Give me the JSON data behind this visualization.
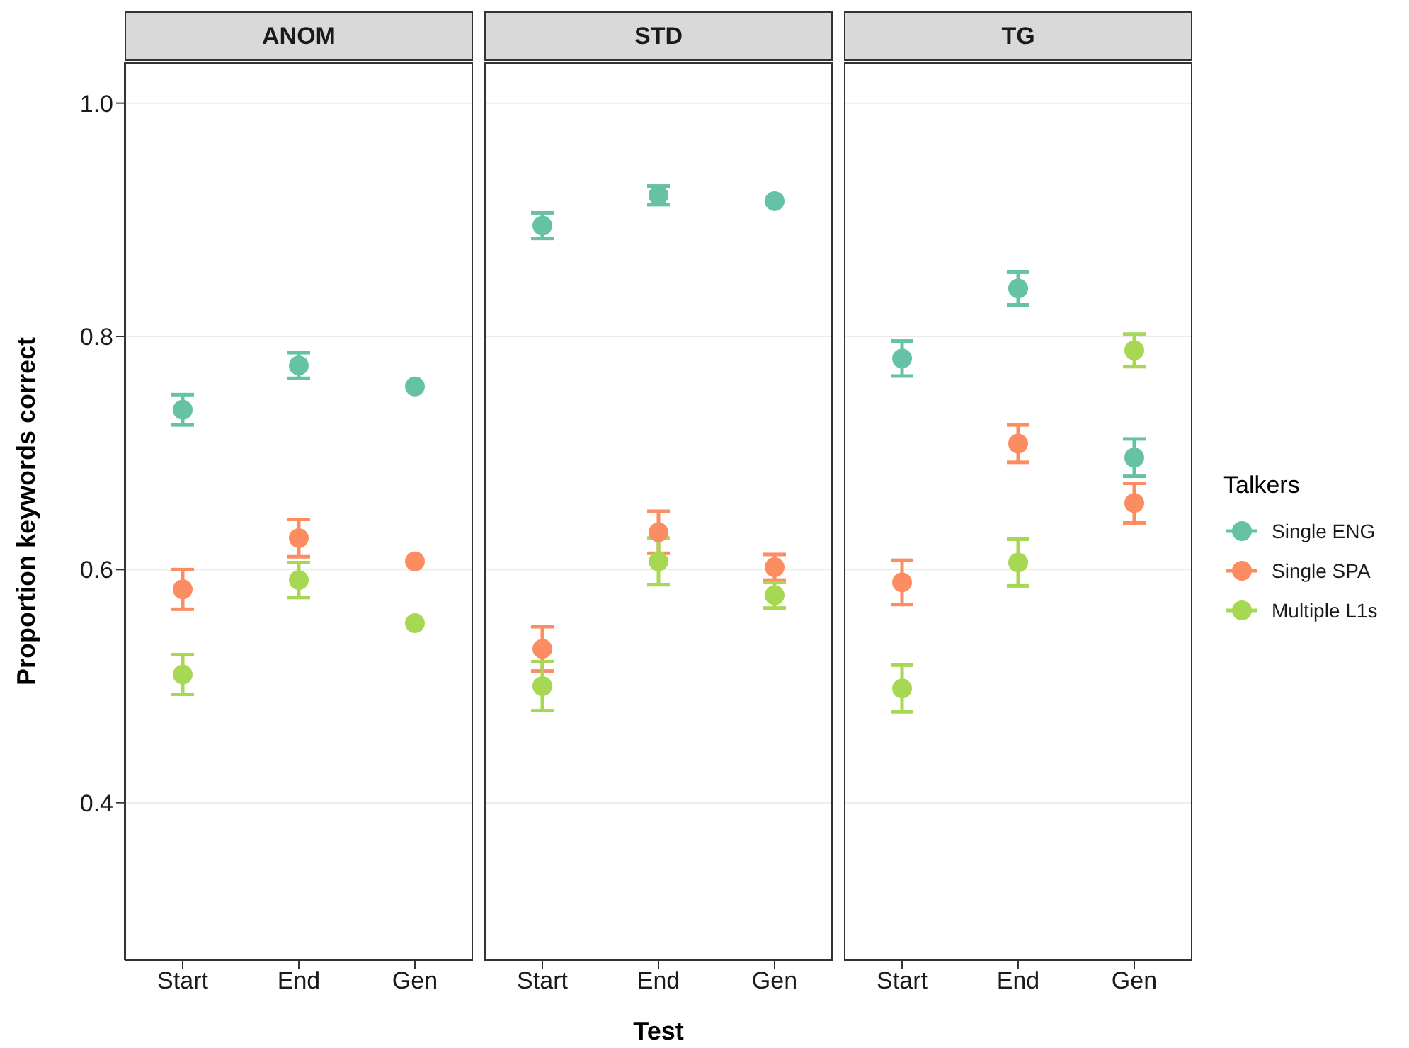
{
  "chart_data": [
    {
      "type": "scatter",
      "title": "ANOM",
      "ylabel": "Proportion keywords correct",
      "categories": [
        "Start",
        "End",
        "Gen"
      ],
      "ylim": [
        0.265,
        1.035
      ],
      "yticks": [
        0.4,
        0.6,
        0.8,
        {
          "value": 1,
          "label": "1.0"
        }
      ],
      "grid": "y",
      "marker": "circle",
      "tick_labels": "xy",
      "series": [
        {
          "color": "#66c2a5",
          "values": [
            0.737,
            0.775,
            0.757
          ],
          "errors": [
            0.013,
            0.011,
            null
          ]
        },
        {
          "color": "#fc8d62",
          "values": [
            0.583,
            0.627,
            0.607
          ],
          "errors": [
            0.017,
            0.016,
            null
          ]
        },
        {
          "color": "#a6d854",
          "values": [
            0.51,
            0.591,
            0.554
          ],
          "errors": [
            0.017,
            0.015,
            null
          ]
        }
      ]
    },
    {
      "type": "scatter",
      "title": "STD",
      "xlabel": "Test",
      "categories": [
        "Start",
        "End",
        "Gen"
      ],
      "ylim": [
        0.265,
        1.035
      ],
      "yticks": [
        0.4,
        0.6,
        0.8,
        1
      ],
      "grid": "y",
      "marker": "circle",
      "tick_labels": "x",
      "series": [
        {
          "color": "#66c2a5",
          "values": [
            0.895,
            0.921,
            0.916
          ],
          "errors": [
            0.011,
            0.008,
            null
          ]
        },
        {
          "color": "#fc8d62",
          "values": [
            0.532,
            0.632,
            0.602
          ],
          "errors": [
            0.019,
            0.018,
            0.011
          ]
        },
        {
          "color": "#a6d854",
          "values": [
            0.5,
            0.607,
            0.578
          ],
          "errors": [
            0.021,
            0.02,
            0.011
          ]
        }
      ]
    },
    {
      "type": "scatter",
      "title": "TG",
      "categories": [
        "Start",
        "End",
        "Gen"
      ],
      "ylim": [
        0.265,
        1.035
      ],
      "yticks": [
        0.4,
        0.6,
        0.8,
        1
      ],
      "grid": "y",
      "marker": "circle",
      "tick_labels": "x",
      "legend": "right",
      "legend_title": "Talkers",
      "series": [
        {
          "name": "Single ENG",
          "color": "#66c2a5",
          "values": [
            0.781,
            0.841,
            0.696
          ],
          "errors": [
            0.015,
            0.014,
            0.016
          ]
        },
        {
          "name": "Single SPA",
          "color": "#fc8d62",
          "values": [
            0.589,
            0.708,
            0.657
          ],
          "errors": [
            0.019,
            0.016,
            0.017
          ]
        },
        {
          "name": "Multiple L1s",
          "color": "#a6d854",
          "values": [
            0.498,
            0.606,
            0.788
          ],
          "errors": [
            0.02,
            0.02,
            0.014
          ]
        }
      ]
    }
  ]
}
